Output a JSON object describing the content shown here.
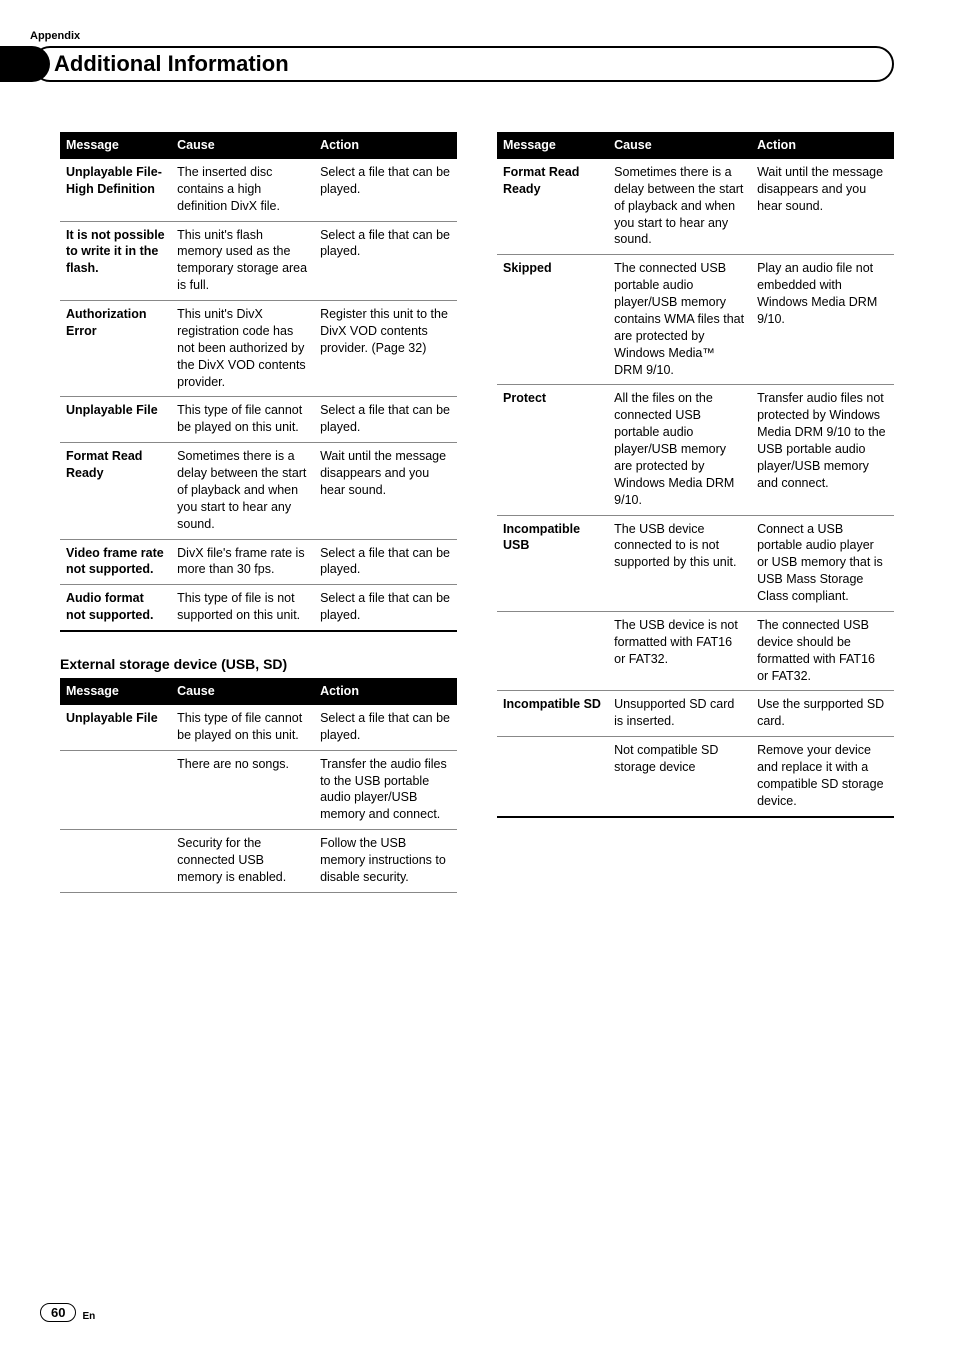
{
  "header": {
    "appendix": "Appendix",
    "title": "Additional Information"
  },
  "table1": {
    "headers": {
      "message": "Message",
      "cause": "Cause",
      "action": "Action"
    },
    "rows": [
      {
        "message": "Unplayable File-High Definition",
        "cause": "The inserted disc contains a high definition DivX file.",
        "action": "Select a file that can be played.",
        "border": "thin"
      },
      {
        "message": "It is not possible to write it in the flash.",
        "cause": "This unit's flash memory used as the temporary storage area is full.",
        "action": "Select a file that can be played.",
        "border": "thin"
      },
      {
        "message": "Authorization Error",
        "cause": "This unit's DivX registration code has not been authorized by the DivX VOD contents provider.",
        "action": "Register this unit to the DivX VOD contents provider. (Page 32)",
        "border": "thin"
      },
      {
        "message": "Unplayable File",
        "cause": "This type of file cannot be played on this unit.",
        "action": "Select a file that can be played.",
        "border": "thin"
      },
      {
        "message": "Format Read Ready",
        "cause": "Sometimes there is a delay between the start of playback and when you start to hear any sound.",
        "action": "Wait until the message disappears and you hear sound.",
        "border": "thin"
      },
      {
        "message": "Video frame rate not supported.",
        "cause": "DivX file's frame rate is more than 30 fps.",
        "action": "Select a file that can be played.",
        "border": "thin"
      },
      {
        "message": "Audio format not supported.",
        "cause": "This type of file is not supported on this unit.",
        "action": "Select a file that can be played.",
        "border": "thick"
      }
    ]
  },
  "section2_heading": "External storage device (USB, SD)",
  "table2": {
    "headers": {
      "message": "Message",
      "cause": "Cause",
      "action": "Action"
    },
    "rows": [
      {
        "message": "Unplayable File",
        "cause": "This type of file cannot be played on this unit.",
        "action": "Select a file that can be played.",
        "border": "thin"
      },
      {
        "message": "",
        "cause": "There are no songs.",
        "action": "Transfer the audio files to the USB portable audio player/USB memory and connect.",
        "border": "thin"
      },
      {
        "message": "",
        "cause": "Security for the connected USB memory is enabled.",
        "action": "Follow the USB memory instructions to disable security.",
        "border": "thin"
      }
    ]
  },
  "table3": {
    "headers": {
      "message": "Message",
      "cause": "Cause",
      "action": "Action"
    },
    "rows": [
      {
        "message": "Format Read Ready",
        "cause": "Sometimes there is a delay between the start of playback and when you start to hear any sound.",
        "action": "Wait until the message disappears and you hear sound.",
        "border": "thin"
      },
      {
        "message": "Skipped",
        "cause": "The connected USB portable audio player/USB memory contains WMA files that are protected by Windows Media™ DRM 9/10.",
        "action": "Play an audio file not embedded with Windows Media DRM 9/10.",
        "border": "thin"
      },
      {
        "message": "Protect",
        "cause": "All the files on the connected USB portable audio player/USB memory are protected by Windows Media DRM 9/10.",
        "action": "Transfer audio files not protected by Windows Media DRM 9/10 to the USB portable audio player/USB memory and connect.",
        "border": "thin"
      },
      {
        "message": "Incompatible USB",
        "cause": "The USB device connected to is not supported by this unit.",
        "action": "Connect a USB portable audio player or USB memory that is USB Mass Storage Class compliant.",
        "border": "thin"
      },
      {
        "message": "",
        "cause": "The USB device is not formatted with FAT16 or FAT32.",
        "action": "The connected USB device should be formatted with FAT16 or FAT32.",
        "border": "thin"
      },
      {
        "message": "Incompatible SD",
        "cause": "Unsupported SD card is inserted.",
        "action": "Use the surpported SD card.",
        "border": "thin"
      },
      {
        "message": "",
        "cause": "Not compatible SD storage device",
        "action": "Remove your device and replace it with a compatible SD storage device.",
        "border": "thick"
      }
    ]
  },
  "footer": {
    "page": "60",
    "lang": "En"
  }
}
